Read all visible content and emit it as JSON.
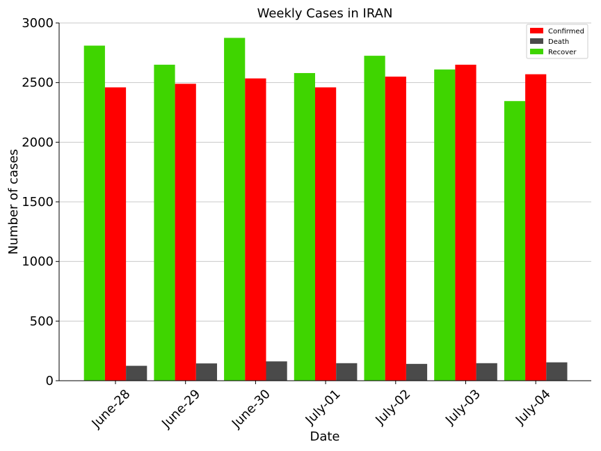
{
  "chart_data": {
    "type": "bar",
    "title": "Weekly Cases in IRAN",
    "xlabel": "Date",
    "ylabel": "Number of cases",
    "categories": [
      "June-28",
      "June-29",
      "June-30",
      "July-01",
      "July-02",
      "July-03",
      "July-04"
    ],
    "series": [
      {
        "name": "Recover",
        "color": "#3fd500",
        "values": [
          2810,
          2650,
          2875,
          2580,
          2725,
          2610,
          2345
        ]
      },
      {
        "name": "Confirmed",
        "color": "#ff0000",
        "values": [
          2460,
          2490,
          2535,
          2460,
          2550,
          2650,
          2570
        ]
      },
      {
        "name": "Death",
        "color": "#4a4a4a",
        "values": [
          125,
          145,
          162,
          147,
          141,
          147,
          154
        ]
      }
    ],
    "legend_order": [
      "Confirmed",
      "Death",
      "Recover"
    ],
    "legend_position": "top-right",
    "ylim": [
      0,
      3000
    ],
    "yticks": [
      0,
      500,
      1000,
      1500,
      2000,
      2500,
      3000
    ],
    "grid": "y"
  }
}
